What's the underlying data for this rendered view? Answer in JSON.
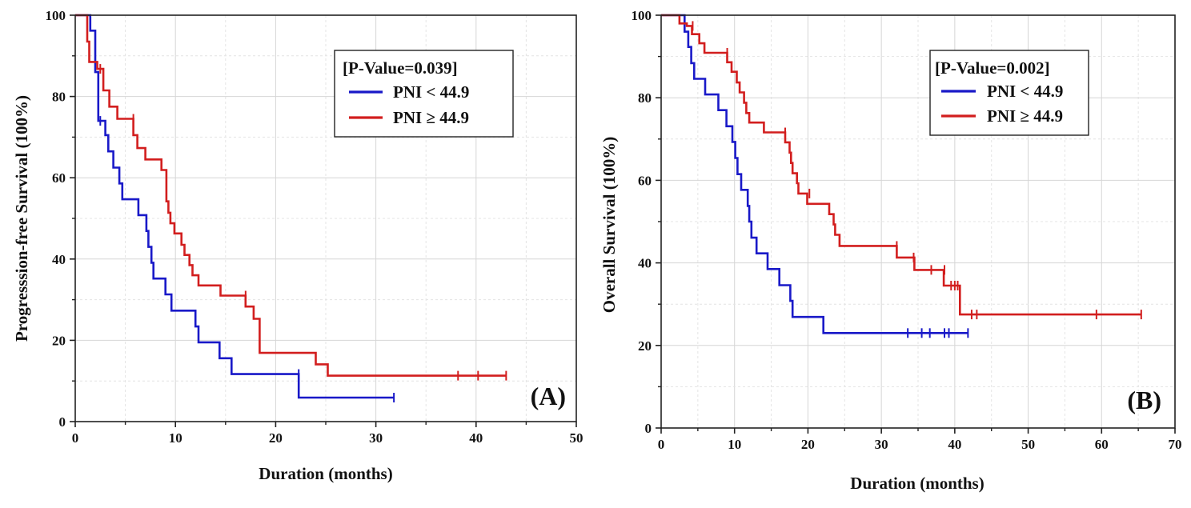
{
  "chart_data": [
    {
      "type": "line",
      "subtype": "kaplan-meier-step",
      "panel_label": "(A)",
      "title": "",
      "xlabel": "Duration (months)",
      "ylabel": "Progresssion-free Survival (100%)",
      "xlim": [
        0,
        50
      ],
      "ylim": [
        0,
        100
      ],
      "xticks": [
        0,
        10,
        20,
        30,
        40,
        50
      ],
      "yticks": [
        0,
        20,
        40,
        60,
        80,
        100
      ],
      "grid": true,
      "legend_position": "top-right",
      "legend_title": "[P-Value=0.039]",
      "series": [
        {
          "name": "PNI < 44.9",
          "color": "#1919c8",
          "points": [
            [
              0,
              100
            ],
            [
              1.5,
              100
            ],
            [
              1.5,
              96.2
            ],
            [
              2.0,
              96.2
            ],
            [
              2.0,
              86
            ],
            [
              2.3,
              86
            ],
            [
              2.3,
              74
            ],
            [
              3.0,
              74
            ],
            [
              3.0,
              70.5
            ],
            [
              3.3,
              70.5
            ],
            [
              3.3,
              66.5
            ],
            [
              3.8,
              66.5
            ],
            [
              3.8,
              62.5
            ],
            [
              4.4,
              62.5
            ],
            [
              4.4,
              58.6
            ],
            [
              4.7,
              58.6
            ],
            [
              4.7,
              54.7
            ],
            [
              6.3,
              54.7
            ],
            [
              6.3,
              50.8
            ],
            [
              7.1,
              50.8
            ],
            [
              7.1,
              46.9
            ],
            [
              7.3,
              46.9
            ],
            [
              7.3,
              43
            ],
            [
              7.6,
              43
            ],
            [
              7.6,
              39.1
            ],
            [
              7.8,
              39.1
            ],
            [
              7.8,
              35.2
            ],
            [
              9.0,
              35.2
            ],
            [
              9.0,
              31.3
            ],
            [
              9.6,
              31.3
            ],
            [
              9.6,
              27.3
            ],
            [
              12.0,
              27.3
            ],
            [
              12.0,
              23.4
            ],
            [
              12.3,
              23.4
            ],
            [
              12.3,
              19.5
            ],
            [
              14.4,
              19.5
            ],
            [
              14.4,
              15.6
            ],
            [
              15.6,
              15.6
            ],
            [
              15.6,
              11.7
            ],
            [
              22.3,
              11.7
            ],
            [
              22.3,
              5.9
            ],
            [
              31.8,
              5.9
            ]
          ],
          "censors": [
            [
              2.5,
              74
            ],
            [
              22.3,
              11.7
            ],
            [
              31.8,
              5.9
            ]
          ]
        },
        {
          "name": "PNI ≥ 44.9",
          "color": "#d21e1e",
          "points": [
            [
              0,
              100
            ],
            [
              1.2,
              100
            ],
            [
              1.2,
              93.5
            ],
            [
              1.4,
              93.5
            ],
            [
              1.4,
              88.5
            ],
            [
              2.2,
              88.5
            ],
            [
              2.2,
              86.8
            ],
            [
              2.8,
              86.8
            ],
            [
              2.8,
              81.5
            ],
            [
              3.4,
              81.5
            ],
            [
              3.4,
              77.5
            ],
            [
              4.2,
              77.5
            ],
            [
              4.2,
              74.5
            ],
            [
              5.8,
              74.5
            ],
            [
              5.8,
              70.5
            ],
            [
              6.2,
              70.5
            ],
            [
              6.2,
              67.3
            ],
            [
              7.0,
              67.3
            ],
            [
              7.0,
              64.5
            ],
            [
              8.6,
              64.5
            ],
            [
              8.6,
              61.9
            ],
            [
              9.1,
              61.9
            ],
            [
              9.1,
              54.2
            ],
            [
              9.3,
              54.2
            ],
            [
              9.3,
              51.4
            ],
            [
              9.5,
              51.4
            ],
            [
              9.5,
              48.8
            ],
            [
              9.9,
              48.8
            ],
            [
              9.9,
              46.3
            ],
            [
              10.6,
              46.3
            ],
            [
              10.6,
              43.5
            ],
            [
              10.9,
              43.5
            ],
            [
              10.9,
              41
            ],
            [
              11.4,
              41
            ],
            [
              11.4,
              38.5
            ],
            [
              11.7,
              38.5
            ],
            [
              11.7,
              36
            ],
            [
              12.3,
              36
            ],
            [
              12.3,
              33.5
            ],
            [
              14.5,
              33.5
            ],
            [
              14.5,
              31
            ],
            [
              17.0,
              31
            ],
            [
              17.0,
              28.3
            ],
            [
              17.8,
              28.3
            ],
            [
              17.8,
              25.3
            ],
            [
              18.4,
              25.3
            ],
            [
              18.4,
              16.9
            ],
            [
              24.0,
              16.9
            ],
            [
              24.0,
              14.1
            ],
            [
              25.2,
              14.1
            ],
            [
              25.2,
              11.3
            ],
            [
              43.0,
              11.3
            ]
          ],
          "censors": [
            [
              2.5,
              86.8
            ],
            [
              5.8,
              74.5
            ],
            [
              17.0,
              31
            ],
            [
              38.2,
              11.3
            ],
            [
              40.2,
              11.3
            ],
            [
              43.0,
              11.3
            ]
          ]
        }
      ]
    },
    {
      "type": "line",
      "subtype": "kaplan-meier-step",
      "panel_label": "(B)",
      "title": "",
      "xlabel": "Duration (months)",
      "ylabel": "Overall Survival (100%)",
      "xlim": [
        0,
        70
      ],
      "ylim": [
        0,
        100
      ],
      "xticks": [
        0,
        10,
        20,
        30,
        40,
        50,
        60,
        70
      ],
      "yticks": [
        0,
        20,
        40,
        60,
        80,
        100
      ],
      "grid": true,
      "legend_position": "top-right",
      "legend_title": "[P-Value=0.002]",
      "series": [
        {
          "name": "PNI < 44.9",
          "color": "#1919c8",
          "points": [
            [
              0,
              100
            ],
            [
              3.2,
              100
            ],
            [
              3.2,
              96
            ],
            [
              3.7,
              96
            ],
            [
              3.7,
              92.3
            ],
            [
              4.1,
              92.3
            ],
            [
              4.1,
              88.4
            ],
            [
              4.5,
              88.4
            ],
            [
              4.5,
              84.6
            ],
            [
              6.0,
              84.6
            ],
            [
              6.0,
              80.8
            ],
            [
              7.8,
              80.8
            ],
            [
              7.8,
              77
            ],
            [
              8.9,
              77
            ],
            [
              8.9,
              73.1
            ],
            [
              9.7,
              73.1
            ],
            [
              9.7,
              69.3
            ],
            [
              10.1,
              69.3
            ],
            [
              10.1,
              65.4
            ],
            [
              10.4,
              65.4
            ],
            [
              10.4,
              61.5
            ],
            [
              10.9,
              61.5
            ],
            [
              10.9,
              57.7
            ],
            [
              11.8,
              57.7
            ],
            [
              11.8,
              53.8
            ],
            [
              12.0,
              53.8
            ],
            [
              12.0,
              50
            ],
            [
              12.3,
              50
            ],
            [
              12.3,
              46.1
            ],
            [
              13.0,
              46.1
            ],
            [
              13.0,
              42.3
            ],
            [
              14.5,
              42.3
            ],
            [
              14.5,
              38.5
            ],
            [
              16.1,
              38.5
            ],
            [
              16.1,
              34.6
            ],
            [
              17.6,
              34.6
            ],
            [
              17.6,
              30.8
            ],
            [
              17.9,
              30.8
            ],
            [
              17.9,
              26.9
            ],
            [
              22.1,
              26.9
            ],
            [
              22.1,
              23
            ],
            [
              41.8,
              23
            ]
          ],
          "censors": [
            [
              33.6,
              23
            ],
            [
              35.5,
              23
            ],
            [
              36.6,
              23
            ],
            [
              38.6,
              23
            ],
            [
              39.2,
              23
            ],
            [
              41.8,
              23
            ]
          ]
        },
        {
          "name": "PNI ≥ 44.9",
          "color": "#d21e1e",
          "points": [
            [
              0,
              100
            ],
            [
              2.5,
              100
            ],
            [
              2.5,
              98
            ],
            [
              3.5,
              98
            ],
            [
              3.5,
              97.4
            ],
            [
              4.2,
              97.4
            ],
            [
              4.2,
              95.4
            ],
            [
              5.2,
              95.4
            ],
            [
              5.2,
              93.2
            ],
            [
              5.9,
              93.2
            ],
            [
              5.9,
              90.9
            ],
            [
              9.0,
              90.9
            ],
            [
              9.0,
              88.6
            ],
            [
              9.6,
              88.6
            ],
            [
              9.6,
              86.3
            ],
            [
              10.3,
              86.3
            ],
            [
              10.3,
              83.7
            ],
            [
              10.7,
              83.7
            ],
            [
              10.7,
              81.3
            ],
            [
              11.3,
              81.3
            ],
            [
              11.3,
              78.8
            ],
            [
              11.6,
              78.8
            ],
            [
              11.6,
              76.3
            ],
            [
              12.0,
              76.3
            ],
            [
              12.0,
              74
            ],
            [
              14.0,
              74
            ],
            [
              14.0,
              71.6
            ],
            [
              16.9,
              71.6
            ],
            [
              16.9,
              69.2
            ],
            [
              17.5,
              69.2
            ],
            [
              17.5,
              66.7
            ],
            [
              17.7,
              66.7
            ],
            [
              17.7,
              64.2
            ],
            [
              17.9,
              64.2
            ],
            [
              17.9,
              61.7
            ],
            [
              18.5,
              61.7
            ],
            [
              18.5,
              59.3
            ],
            [
              18.7,
              59.3
            ],
            [
              18.7,
              56.8
            ],
            [
              19.9,
              56.8
            ],
            [
              19.9,
              54.3
            ],
            [
              22.9,
              54.3
            ],
            [
              22.9,
              51.8
            ],
            [
              23.5,
              51.8
            ],
            [
              23.5,
              49.3
            ],
            [
              23.7,
              49.3
            ],
            [
              23.7,
              46.8
            ],
            [
              24.3,
              46.8
            ],
            [
              24.3,
              44.1
            ],
            [
              32.1,
              44.1
            ],
            [
              32.1,
              41.3
            ],
            [
              34.5,
              41.3
            ],
            [
              34.5,
              38.3
            ],
            [
              38.5,
              38.3
            ],
            [
              38.5,
              34.5
            ],
            [
              40.7,
              34.5
            ],
            [
              40.7,
              27.5
            ],
            [
              65.4,
              27.5
            ]
          ],
          "censors": [
            [
              4.3,
              97.4
            ],
            [
              9.0,
              90.9
            ],
            [
              16.9,
              71.6
            ],
            [
              20.2,
              56.8
            ],
            [
              32.1,
              44.1
            ],
            [
              34.4,
              41.3
            ],
            [
              36.8,
              38.3
            ],
            [
              38.6,
              38.3
            ],
            [
              39.5,
              34.5
            ],
            [
              40.0,
              34.5
            ],
            [
              40.4,
              34.5
            ],
            [
              42.3,
              27.5
            ],
            [
              43.0,
              27.5
            ],
            [
              59.3,
              27.5
            ],
            [
              65.4,
              27.5
            ]
          ]
        }
      ]
    }
  ]
}
